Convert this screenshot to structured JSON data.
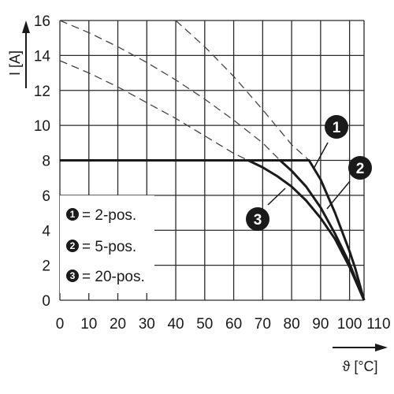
{
  "chart_data": {
    "type": "line",
    "title": "",
    "xlabel": "ϑ [°C]",
    "ylabel": "I [A]",
    "xlim": [
      0,
      105
    ],
    "ylim": [
      0,
      16
    ],
    "x_ticks": [
      "0",
      "10",
      "20",
      "30",
      "40",
      "50",
      "60",
      "70",
      "80",
      "90",
      "100",
      "110"
    ],
    "y_ticks": [
      "0",
      "2",
      "4",
      "6",
      "8",
      "10",
      "12",
      "14",
      "16"
    ],
    "grid": true,
    "legend": {
      "placement": "bottom-left",
      "entries": [
        {
          "badge": "1",
          "text": "= 2-pos."
        },
        {
          "badge": "2",
          "text": "= 5-pos."
        },
        {
          "badge": "3",
          "text": "= 20-pos."
        }
      ]
    },
    "series": [
      {
        "badge": "1",
        "dashed": {
          "x": [
            40,
            50,
            60,
            70,
            80,
            86
          ],
          "y": [
            16,
            14.5,
            12.8,
            10.9,
            8.9,
            8
          ]
        },
        "solid": {
          "x": [
            0,
            86,
            90,
            95,
            100,
            102,
            105
          ],
          "y": [
            8,
            8,
            6.9,
            5.0,
            2.8,
            1.8,
            0
          ]
        }
      },
      {
        "badge": "2",
        "dashed": {
          "x": [
            0,
            10,
            20,
            30,
            40,
            50,
            60,
            70,
            76
          ],
          "y": [
            16,
            15.3,
            14.5,
            13.6,
            12.6,
            11.5,
            10.3,
            9.0,
            8
          ]
        },
        "solid": {
          "x": [
            0,
            76,
            80,
            85,
            90,
            95,
            100,
            105
          ],
          "y": [
            8,
            8,
            7.4,
            6.5,
            5.3,
            3.8,
            2.1,
            0
          ]
        }
      },
      {
        "badge": "3",
        "dashed": {
          "x": [
            0,
            10,
            20,
            30,
            40,
            50,
            60,
            65
          ],
          "y": [
            13.7,
            13.0,
            12.2,
            11.3,
            10.4,
            9.4,
            8.4,
            8
          ]
        },
        "solid": {
          "x": [
            0,
            65,
            70,
            75,
            80,
            85,
            90,
            95,
            100,
            105
          ],
          "y": [
            8,
            8,
            7.6,
            7.1,
            6.5,
            5.7,
            4.7,
            3.5,
            1.9,
            0
          ]
        }
      }
    ],
    "badge_color": "#1a1a1a",
    "line_color": "#1a1a1a",
    "grid_color": "#2a2a2a"
  }
}
